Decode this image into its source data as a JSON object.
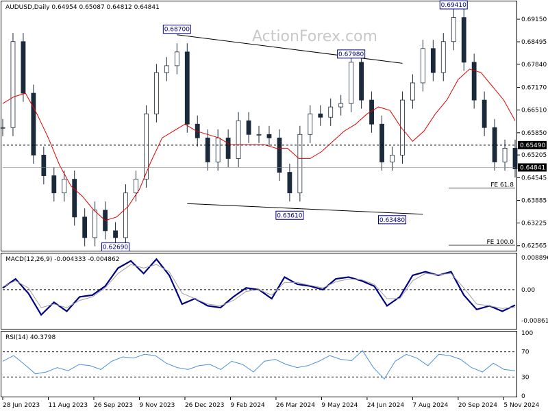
{
  "chart_data": [
    {
      "type": "candlestick",
      "header": "AUDUSD,Daily  0.64954 0.65087 0.64812 0.64841",
      "watermark": "ActionForex.com",
      "y_ticks": [
        0.6915,
        0.68495,
        0.6784,
        0.6717,
        0.6651,
        0.6585,
        0.65205,
        0.64545,
        0.63885,
        0.63225,
        0.62565
      ],
      "ylim": [
        0.6246,
        0.6963
      ],
      "x_tick_labels": [
        "28 Jun 2023",
        "11 Aug 2023",
        "26 Sep 2023",
        "9 Nov 2023",
        "26 Dec 2023",
        "9 Feb 2024",
        "26 Mar 2024",
        "9 May 2024",
        "24 Jun 2024",
        "7 Aug 2024",
        "20 Sep 2024",
        "5 Nov 2024"
      ],
      "last_price_tag": "0.64841",
      "level_tag": "0.65490",
      "level_line_value": 0.6549,
      "last_price_line_value": 0.64841,
      "callouts": [
        {
          "label": "0.68700",
          "value": 0.687,
          "x_index": 17
        },
        {
          "label": "0.67980",
          "value": 0.6798,
          "x_index": 34
        },
        {
          "label": "0.69410",
          "value": 0.6941,
          "x_index": 44
        },
        {
          "label": "0.63610",
          "value": 0.6361,
          "x_index": 28
        },
        {
          "label": "0.63480",
          "value": 0.6348,
          "x_index": 38
        },
        {
          "label": "0.62690",
          "value": 0.6269,
          "x_index": 11
        }
      ],
      "fib_levels": [
        {
          "label": "FE 61.8",
          "value": 0.6424
        },
        {
          "label": "FE 100.0",
          "value": 0.6258
        }
      ],
      "trendlines": [
        {
          "from": [
            17,
            0.687
          ],
          "to": [
            39,
            0.6787
          ]
        },
        {
          "from": [
            18,
            0.6379
          ],
          "to": [
            41,
            0.6348
          ]
        }
      ],
      "closes": [
        0.66,
        0.685,
        0.67,
        0.652,
        0.646,
        0.641,
        0.645,
        0.634,
        0.628,
        0.636,
        0.63,
        0.628,
        0.641,
        0.645,
        0.664,
        0.676,
        0.678,
        0.682,
        0.661,
        0.657,
        0.65,
        0.657,
        0.651,
        0.662,
        0.658,
        0.658,
        0.657,
        0.647,
        0.641,
        0.658,
        0.664,
        0.663,
        0.666,
        0.667,
        0.679,
        0.668,
        0.661,
        0.65,
        0.652,
        0.668,
        0.673,
        0.683,
        0.676,
        0.685,
        0.692,
        0.679,
        0.668,
        0.66,
        0.65,
        0.654,
        0.648
      ],
      "ma_values": [
        0.667,
        0.669,
        0.67,
        0.664,
        0.657,
        0.649,
        0.643,
        0.64,
        0.636,
        0.633,
        0.634,
        0.637,
        0.642,
        0.65,
        0.657,
        0.659,
        0.661,
        0.659,
        0.658,
        0.657,
        0.655,
        0.655,
        0.655,
        0.655,
        0.654,
        0.654,
        0.651,
        0.651,
        0.653,
        0.656,
        0.659,
        0.661,
        0.664,
        0.666,
        0.665,
        0.66,
        0.656,
        0.659,
        0.664,
        0.668,
        0.674,
        0.677,
        0.676,
        0.672,
        0.668,
        0.662
      ],
      "ma_color": "#e00000",
      "candle_color": "#1a2a3a"
    },
    {
      "type": "line",
      "name": "MACD(12,26,9) -0.004333 -0.004862",
      "y_ticks_labels": [
        "0.008896",
        "0.00",
        "-0.008612"
      ],
      "ylim": [
        -0.0105,
        0.0097
      ],
      "series": [
        {
          "name": "MACD",
          "color": "#000080",
          "values": [
            0.0005,
            0.003,
            -0.001,
            -0.007,
            -0.0035,
            -0.006,
            -0.002,
            -0.0015,
            0.001,
            0.006,
            0.008,
            0.0045,
            0.0085,
            0.004,
            -0.004,
            -0.0025,
            -0.0045,
            -0.005,
            -0.002,
            0.0005,
            0.0,
            -0.0025,
            0.0035,
            0.0015,
            0.001,
            0.0,
            0.003,
            0.0035,
            0.0025,
            0.001,
            -0.0045,
            -0.002,
            0.004,
            0.005,
            0.004,
            0.005,
            -0.0015,
            -0.0055,
            -0.0045,
            -0.006,
            -0.0043
          ]
        },
        {
          "name": "Signal",
          "color": "#a0a0a0",
          "values": [
            0.0008,
            0.0025,
            0.0005,
            -0.005,
            -0.004,
            -0.005,
            -0.003,
            -0.002,
            0.0005,
            0.0045,
            0.007,
            0.006,
            0.007,
            0.005,
            -0.001,
            -0.0025,
            -0.004,
            -0.0045,
            -0.003,
            -0.0005,
            0.0,
            -0.0015,
            0.002,
            0.002,
            0.0012,
            0.0005,
            0.0022,
            0.003,
            0.0028,
            0.0015,
            -0.0025,
            -0.0025,
            0.0025,
            0.0045,
            0.0042,
            0.0045,
            0.0005,
            -0.004,
            -0.0045,
            -0.0052,
            -0.0049
          ]
        }
      ]
    },
    {
      "type": "line",
      "name": "RSI(14) 40.3798",
      "y_ticks_labels": [
        "100",
        "70",
        "30",
        "0"
      ],
      "y_tick_values": [
        100,
        70,
        30,
        0
      ],
      "ylim": [
        0,
        100
      ],
      "series": [
        {
          "name": "RSI",
          "color": "#4a90d9",
          "values": [
            55,
            64,
            50,
            35,
            38,
            45,
            40,
            50,
            48,
            42,
            55,
            62,
            60,
            66,
            64,
            52,
            45,
            42,
            48,
            50,
            42,
            55,
            50,
            38,
            55,
            58,
            50,
            45,
            48,
            55,
            64,
            58,
            56,
            72,
            45,
            27,
            55,
            66,
            60,
            48,
            66,
            64,
            58,
            45,
            38,
            52,
            42,
            40
          ]
        }
      ]
    }
  ]
}
